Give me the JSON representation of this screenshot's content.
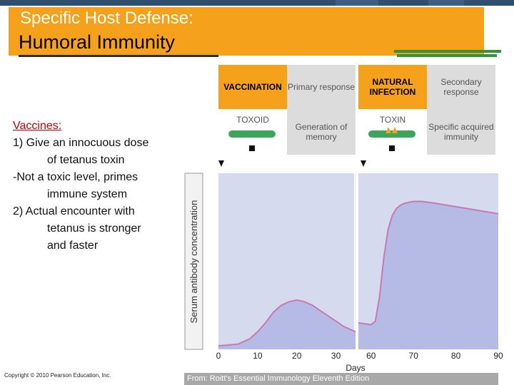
{
  "header": {
    "title_line1": "Specific Host Defense:",
    "title_line2": "Humoral Immunity"
  },
  "bullets": {
    "heading": "Vaccines:",
    "line1": "1) Give an innocuous dose",
    "line1b": "of tetanus toxin",
    "line2": "-Not a toxic level, primes",
    "line2b": "immune system",
    "line3": "2) Actual encounter with",
    "line3b": "tetanus is stronger",
    "line3c": "and faster"
  },
  "panel": {
    "vaccination": "VACCINATION",
    "primary": "Primary response",
    "natural": "NATURAL INFECTION",
    "secondary": "Secondary response",
    "toxoid": "TOXOID",
    "memory": "Generation of memory",
    "toxin": "TOXIN",
    "specific": "Specific acquired immunity"
  },
  "footer": {
    "copyright": "Copyright © 2010 Pearson Education, Inc.",
    "source": "From: Roitt's Essential Immunology Eleventh Edition"
  },
  "colors": {
    "orange": "#f5a11c",
    "plot_bg": "#d5daef",
    "curve_fill": "#b6bbe6",
    "curve_line": "#c37bb0"
  },
  "chart_data": {
    "type": "area",
    "title": "",
    "xlabel": "Days",
    "ylabel": "Serum antibody concentration",
    "x_ticks": [
      0,
      10,
      20,
      30,
      60,
      70,
      80,
      90
    ],
    "xlim_segments": [
      [
        0,
        35
      ],
      [
        57,
        90
      ]
    ],
    "series": [
      {
        "x": [
          0,
          5,
          8,
          10,
          12,
          14,
          16,
          18,
          20,
          22,
          24,
          26,
          28,
          30,
          32,
          35
        ],
        "y": [
          2,
          3,
          6,
          10,
          15,
          21,
          25,
          27,
          28,
          27,
          25,
          22,
          19,
          16,
          13,
          10
        ]
      },
      {
        "x": [
          57,
          60,
          61,
          62,
          63,
          64,
          65,
          66,
          67,
          68,
          70,
          72,
          75,
          80,
          85,
          90
        ],
        "y": [
          15,
          14,
          16,
          30,
          52,
          68,
          76,
          80,
          82,
          83,
          84,
          84,
          83,
          81,
          79,
          77
        ]
      }
    ],
    "ylim": [
      0,
      100
    ],
    "grid": false
  }
}
